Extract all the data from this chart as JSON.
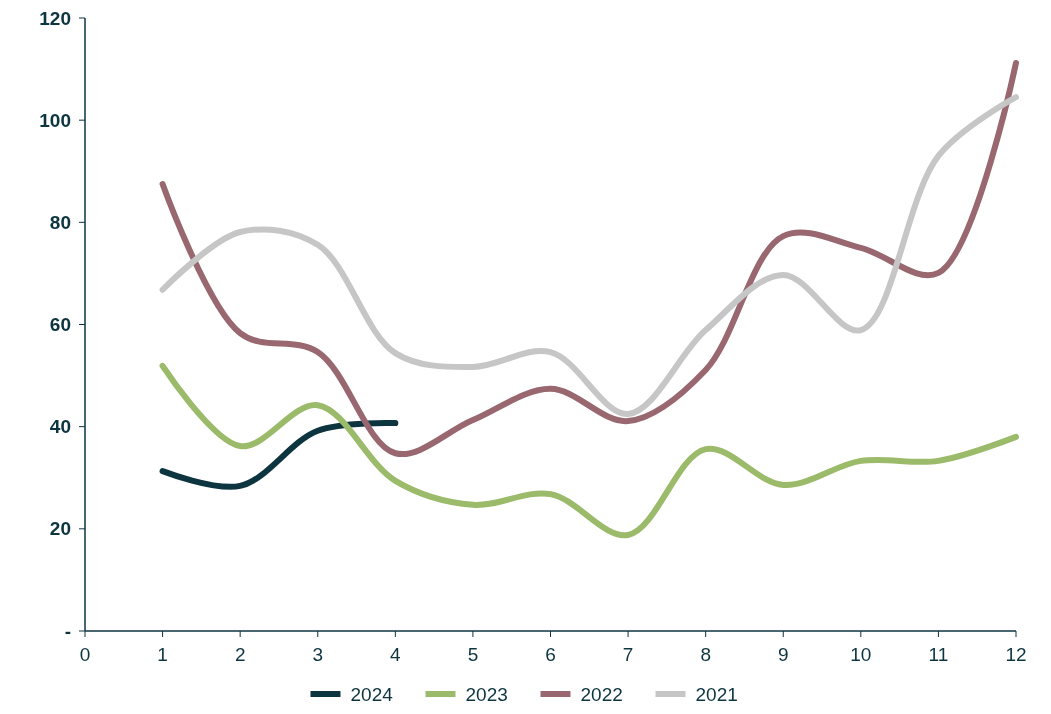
{
  "chart_data": {
    "type": "line",
    "xlim": [
      0,
      12
    ],
    "xticks": [
      0,
      1,
      2,
      3,
      4,
      5,
      6,
      7,
      8,
      9,
      10,
      11,
      12
    ],
    "ylim": [
      0,
      120
    ],
    "yticks": [
      {
        "value": 0,
        "label": "-"
      },
      20,
      40,
      60,
      80,
      100,
      120
    ],
    "grid": false,
    "legend": "bottom",
    "marker": "none",
    "line_style": "solid",
    "series": [
      {
        "name": "2024",
        "color": "#0d3540",
        "x": [
          1,
          2,
          3,
          4
        ],
        "values": [
          31.3,
          28.4,
          39.2,
          40.7
        ]
      },
      {
        "name": "2023",
        "color": "#9bbb6a",
        "x": [
          1,
          2,
          3,
          4,
          5,
          6,
          7,
          8,
          9,
          10,
          11,
          12
        ],
        "values": [
          51.9,
          36.2,
          44.2,
          29.4,
          24.7,
          26.8,
          18.8,
          35.6,
          28.6,
          33.3,
          33.3,
          38.0
        ]
      },
      {
        "name": "2022",
        "color": "#98676f",
        "x": [
          1,
          2,
          3,
          4,
          5,
          6,
          7,
          8,
          9,
          10,
          11,
          12
        ],
        "values": [
          87.5,
          58.3,
          54.6,
          34.8,
          41.3,
          47.4,
          41.1,
          51.1,
          77.3,
          75.0,
          70.1,
          111.2
        ]
      },
      {
        "name": "2021",
        "color": "#c6c6c6",
        "x": [
          1,
          2,
          3,
          4,
          5,
          6,
          7,
          8,
          9,
          10,
          11,
          12
        ],
        "values": [
          66.8,
          78.1,
          75.6,
          54.4,
          51.7,
          54.6,
          42.5,
          58.9,
          69.7,
          58.9,
          93.0,
          104.5
        ]
      }
    ]
  }
}
